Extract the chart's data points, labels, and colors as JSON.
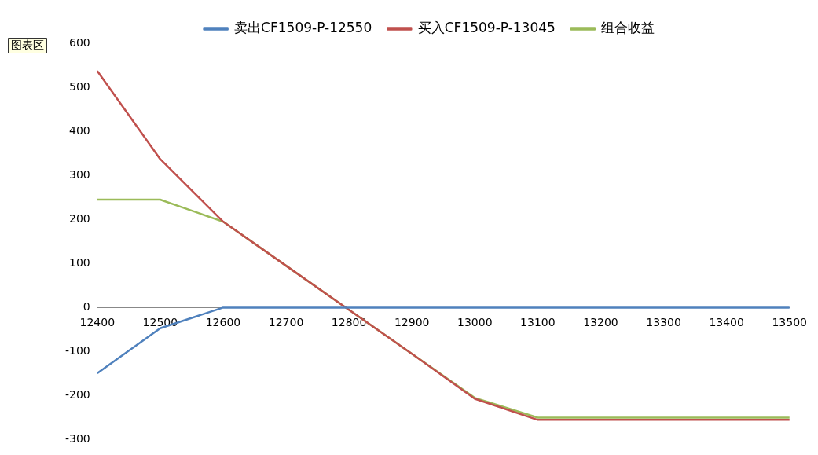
{
  "chart_data": {
    "type": "line",
    "categories": [
      "12400",
      "12500",
      "12600",
      "12700",
      "12800",
      "12900",
      "13000",
      "13100",
      "13200",
      "13300",
      "13400",
      "13500"
    ],
    "series": [
      {
        "name": "卖出CF1509-P-12550",
        "color": "#4f81bd",
        "values": [
          -149,
          -47,
          0,
          0,
          0,
          0,
          0,
          0,
          0,
          0,
          0,
          0
        ]
      },
      {
        "name": "买入CF1509-P-13045",
        "color": "#c0504d",
        "values": [
          537,
          337,
          195,
          95,
          -5,
          -105,
          -207,
          -255,
          -255,
          -255,
          -255,
          -255
        ]
      },
      {
        "name": "组合收益",
        "color": "#9bbb59",
        "values": [
          245,
          245,
          195,
          95,
          -5,
          -105,
          -205,
          -250,
          -250,
          -250,
          -250,
          -250
        ]
      }
    ],
    "ylim": [
      -300,
      600
    ],
    "yticks": [
      -300,
      -200,
      -100,
      0,
      100,
      200,
      300,
      400,
      500,
      600
    ],
    "grid": false,
    "legend": "top",
    "marker": "none",
    "line_style": "solid",
    "annotations": [
      "图表区"
    ]
  }
}
